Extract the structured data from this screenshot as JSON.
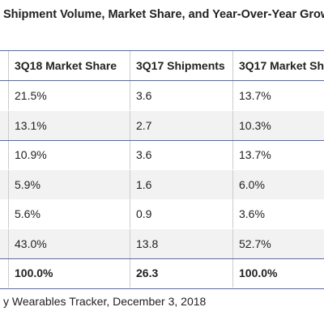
{
  "title": "Shipment Volume, Market Share, and Year-Over-Year Growt",
  "table": {
    "header": [
      "3Q18 Market Share",
      "3Q17 Shipments",
      "3Q17 Market Sha"
    ],
    "rows": [
      [
        "21.5%",
        "3.6",
        "13.7%"
      ],
      [
        "13.1%",
        "2.7",
        "10.3%"
      ],
      [
        "10.9%",
        "3.6",
        "13.7%"
      ],
      [
        "5.9%",
        "1.6",
        "6.0%"
      ],
      [
        "5.6%",
        "0.9",
        "3.6%"
      ],
      [
        "43.0%",
        "13.8",
        "52.7%"
      ],
      [
        "100.0%",
        "26.3",
        "100.0%"
      ]
    ]
  },
  "footer": "y Wearables Tracker, December 3, 2018"
}
